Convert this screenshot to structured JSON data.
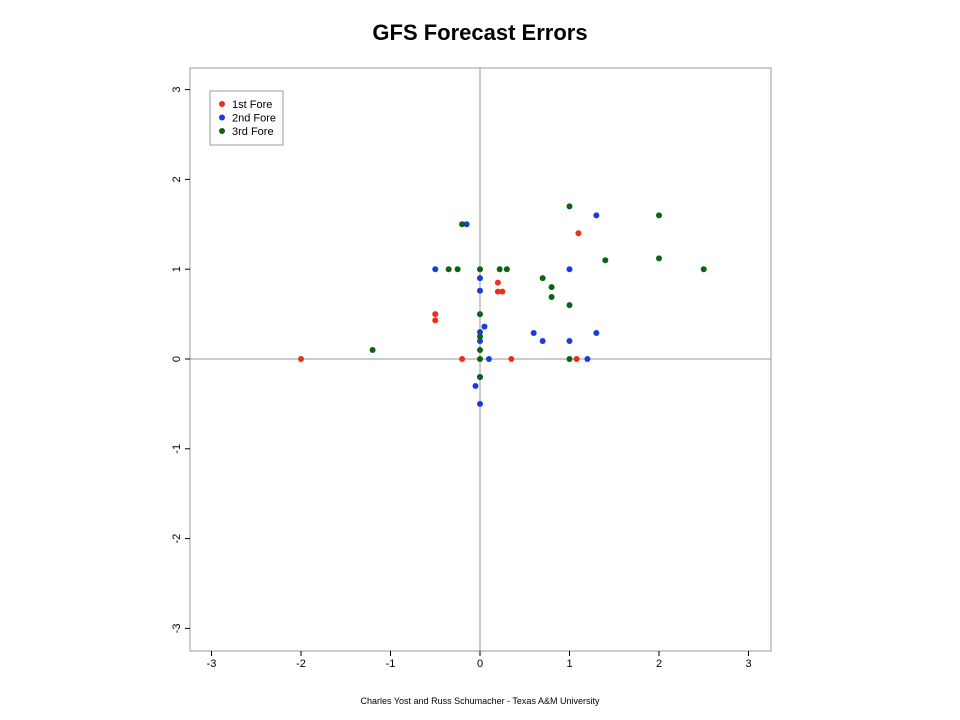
{
  "page": {
    "title": "GFS Forecast Errors",
    "footer": "Charles Yost and Russ Schumacher - Texas A&M University"
  },
  "chart_data": {
    "type": "scatter",
    "title": "GFS Forecast Errors",
    "xlabel": "",
    "ylabel": "",
    "xlim": [
      -3.3,
      3.3
    ],
    "ylim": [
      -3.3,
      3.3
    ],
    "xticks": [
      -3,
      -2,
      -1,
      0,
      1,
      2,
      3
    ],
    "yticks": [
      -3,
      -2,
      -1,
      0,
      1,
      2,
      3
    ],
    "reference_lines": {
      "x": 0,
      "y": 0
    },
    "grid": false,
    "legend_position": "top-left",
    "series": [
      {
        "name": "1st Fore",
        "color": "#e8311a",
        "points": [
          [
            -2,
            0
          ],
          [
            -0.5,
            0.5
          ],
          [
            -0.5,
            0.43
          ],
          [
            -0.2,
            0
          ],
          [
            0.2,
            0.85
          ],
          [
            0.2,
            0.75
          ],
          [
            0.25,
            0.75
          ],
          [
            0.35,
            0
          ],
          [
            1.1,
            1.4
          ],
          [
            1.08,
            0
          ]
        ]
      },
      {
        "name": "2nd Fore",
        "color": "#1a3be0",
        "points": [
          [
            -0.5,
            1
          ],
          [
            -0.15,
            1.5
          ],
          [
            0,
            0.9
          ],
          [
            0,
            0.76
          ],
          [
            0,
            0.3
          ],
          [
            0,
            0.2
          ],
          [
            0,
            -0.2
          ],
          [
            0.05,
            0.36
          ],
          [
            0.1,
            0
          ],
          [
            -0.05,
            -0.3
          ],
          [
            0,
            -0.5
          ],
          [
            0.6,
            0.29
          ],
          [
            0.7,
            0.2
          ],
          [
            1,
            1
          ],
          [
            1,
            0.2
          ],
          [
            1.2,
            0
          ],
          [
            1.3,
            1.6
          ],
          [
            1.3,
            0.29
          ]
        ]
      },
      {
        "name": "3rd Fore",
        "color": "#0a6414",
        "points": [
          [
            -1.2,
            0.1
          ],
          [
            -0.35,
            1
          ],
          [
            -0.25,
            1
          ],
          [
            -0.2,
            1.5
          ],
          [
            0,
            1
          ],
          [
            0,
            0.5
          ],
          [
            0,
            0.25
          ],
          [
            0,
            0.1
          ],
          [
            0,
            0
          ],
          [
            0,
            -0.2
          ],
          [
            0.22,
            1
          ],
          [
            0.3,
            1
          ],
          [
            0.7,
            0.9
          ],
          [
            0.8,
            0.8
          ],
          [
            0.8,
            0.69
          ],
          [
            1,
            1.7
          ],
          [
            1,
            0.6
          ],
          [
            1,
            0
          ],
          [
            1.4,
            1.1
          ],
          [
            2,
            1.6
          ],
          [
            2,
            1.12
          ],
          [
            2.5,
            1
          ]
        ]
      }
    ]
  }
}
